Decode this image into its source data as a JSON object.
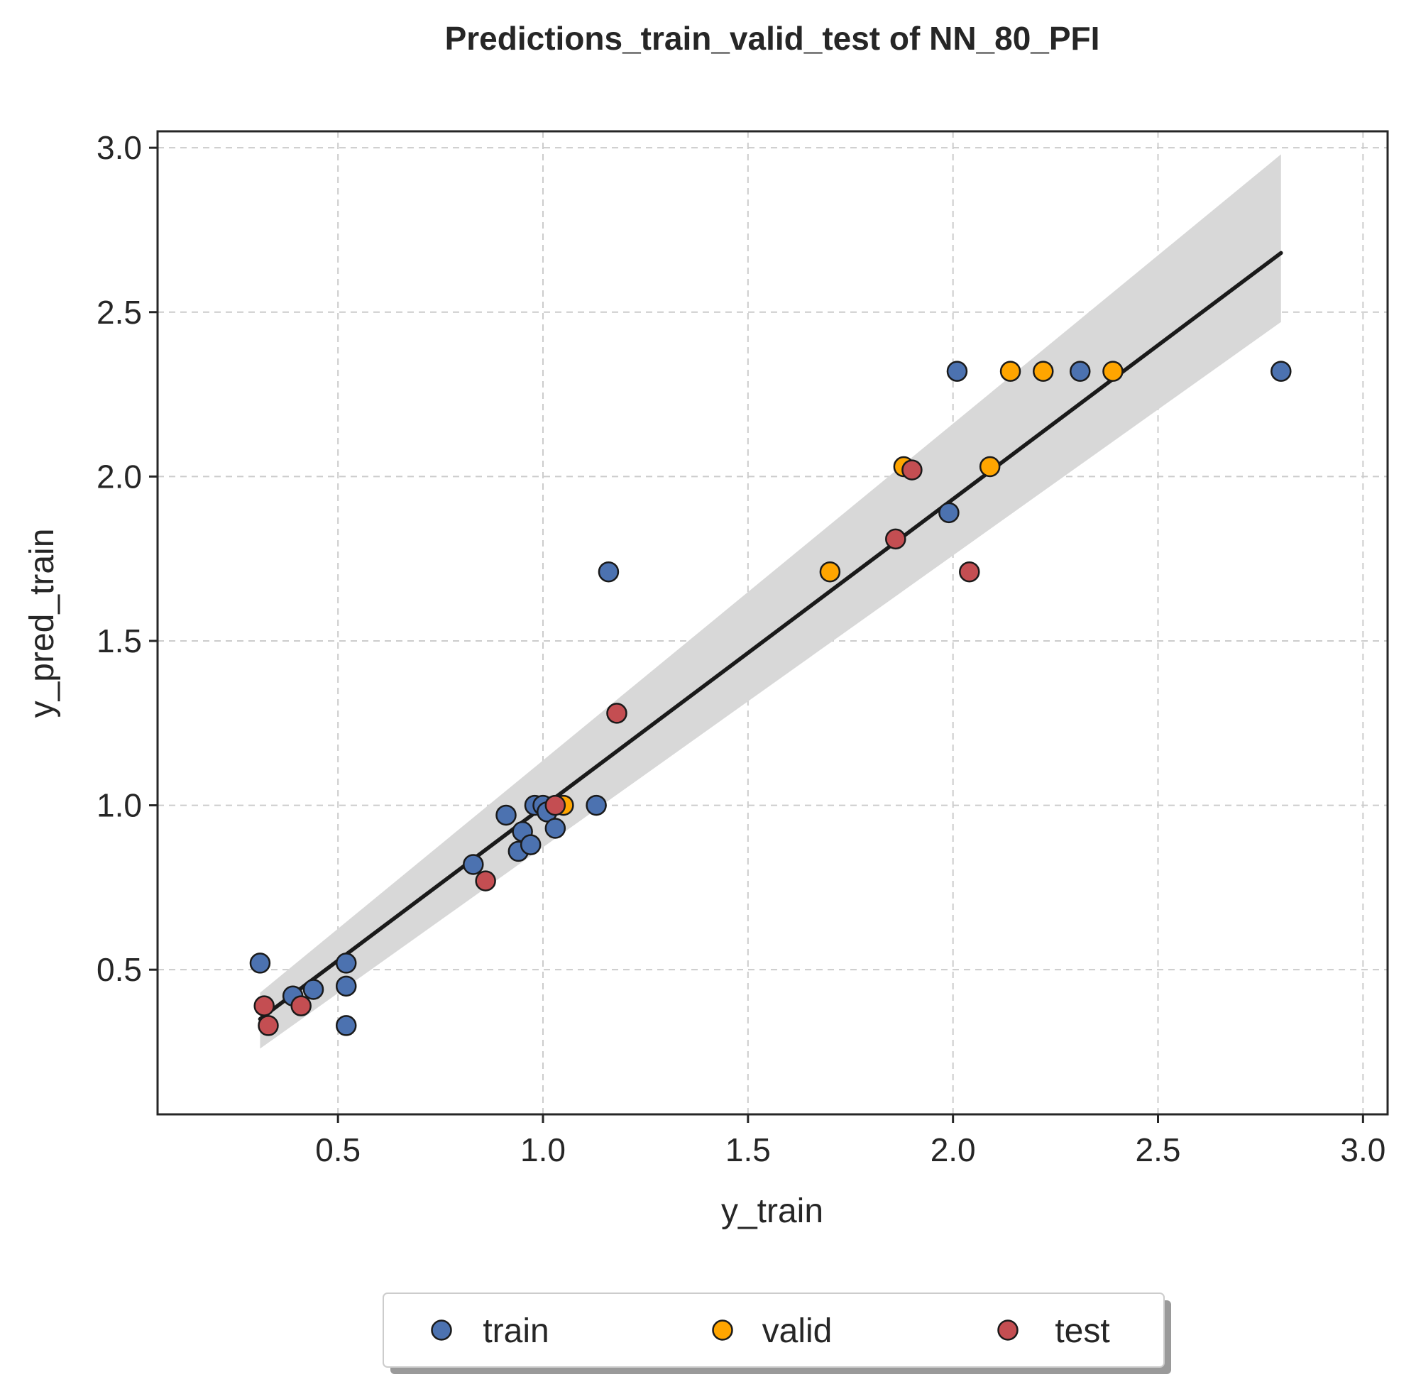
{
  "chart_data": {
    "type": "scatter",
    "title": "Predictions_train_valid_test of NN_80_PFI",
    "xlabel": "y_train",
    "ylabel": "y_pred_train",
    "xlim": [
      0.06,
      3.06
    ],
    "ylim": [
      0.06,
      3.05
    ],
    "xticks": [
      0.5,
      1.0,
      1.5,
      2.0,
      2.5,
      3.0
    ],
    "yticks": [
      0.5,
      1.0,
      1.5,
      2.0,
      2.5,
      3.0
    ],
    "tick_labels_x": [
      "0.5",
      "1.0",
      "1.5",
      "2.0",
      "2.5",
      "3.0"
    ],
    "tick_labels_y": [
      "0.5",
      "1.0",
      "1.5",
      "2.0",
      "2.5",
      "3.0"
    ],
    "grid": true,
    "legend_position": "bottom-center",
    "series": [
      {
        "name": "train",
        "color": "#4C72B0",
        "points": [
          [
            0.31,
            0.52
          ],
          [
            0.39,
            0.42
          ],
          [
            0.44,
            0.44
          ],
          [
            0.52,
            0.52
          ],
          [
            0.52,
            0.45
          ],
          [
            0.52,
            0.33
          ],
          [
            0.83,
            0.82
          ],
          [
            0.91,
            0.97
          ],
          [
            0.94,
            0.86
          ],
          [
            0.95,
            0.92
          ],
          [
            0.97,
            0.88
          ],
          [
            0.98,
            1.0
          ],
          [
            1.0,
            1.0
          ],
          [
            1.01,
            0.98
          ],
          [
            1.03,
            0.93
          ],
          [
            1.13,
            1.0
          ],
          [
            1.16,
            1.71
          ],
          [
            1.99,
            1.89
          ],
          [
            2.01,
            2.32
          ],
          [
            2.31,
            2.32
          ],
          [
            2.8,
            2.32
          ]
        ]
      },
      {
        "name": "valid",
        "color": "#FFA500",
        "points": [
          [
            1.05,
            1.0
          ],
          [
            1.7,
            1.71
          ],
          [
            1.88,
            2.03
          ],
          [
            2.09,
            2.03
          ],
          [
            2.14,
            2.32
          ],
          [
            2.22,
            2.32
          ],
          [
            2.39,
            2.32
          ]
        ]
      },
      {
        "name": "test",
        "color": "#C44E52",
        "points": [
          [
            0.32,
            0.39
          ],
          [
            0.33,
            0.33
          ],
          [
            0.41,
            0.39
          ],
          [
            0.86,
            0.77
          ],
          [
            1.03,
            1.0
          ],
          [
            1.18,
            1.28
          ],
          [
            1.86,
            1.81
          ],
          [
            1.9,
            2.02
          ],
          [
            2.04,
            1.71
          ]
        ]
      }
    ],
    "regression": {
      "x_range": [
        0.31,
        2.8
      ],
      "y_at_start": 0.35,
      "y_at_end": 2.68,
      "ci_lower_at_start": 0.26,
      "ci_upper_at_start": 0.43,
      "ci_lower_at_end": 2.47,
      "ci_upper_at_end": 2.98,
      "line_color": "#1a1a1a",
      "ci_color": "#d8d8d8"
    }
  }
}
